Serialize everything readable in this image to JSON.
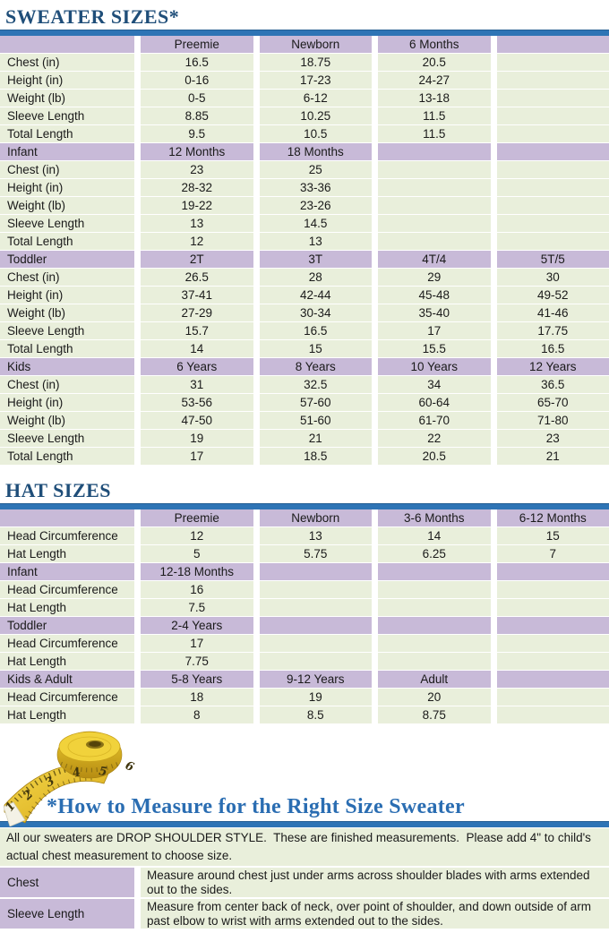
{
  "colors": {
    "title_navy": "#1F4E79",
    "bar_blue": "#2E74B5",
    "header_purple": "#C8BAD8",
    "cell_green": "#E9EFDB",
    "heading_blue": "#2A6DB2",
    "tape_yellow": "#E9C42A"
  },
  "sweater": {
    "title": "SWEATER SIZES*",
    "sections": [
      {
        "header": [
          "",
          "Preemie",
          "Newborn",
          "6 Months",
          ""
        ],
        "rows": [
          [
            "Chest (in)",
            "16.5",
            "18.75",
            "20.5",
            ""
          ],
          [
            "Height (in)",
            "0-16",
            "17-23",
            "24-27",
            ""
          ],
          [
            "Weight (lb)",
            "0-5",
            "6-12",
            "13-18",
            ""
          ],
          [
            "Sleeve Length",
            "8.85",
            "10.25",
            "11.5",
            ""
          ],
          [
            "Total Length",
            "9.5",
            "10.5",
            "11.5",
            ""
          ]
        ]
      },
      {
        "header": [
          "Infant",
          "12 Months",
          "18 Months",
          "",
          ""
        ],
        "rows": [
          [
            "Chest (in)",
            "23",
            "25",
            "",
            ""
          ],
          [
            "Height (in)",
            "28-32",
            "33-36",
            "",
            ""
          ],
          [
            "Weight (lb)",
            "19-22",
            "23-26",
            "",
            ""
          ],
          [
            "Sleeve Length",
            "13",
            "14.5",
            "",
            ""
          ],
          [
            "Total Length",
            "12",
            "13",
            "",
            ""
          ]
        ]
      },
      {
        "header": [
          "Toddler",
          "2T",
          "3T",
          "4T/4",
          "5T/5"
        ],
        "rows": [
          [
            "Chest (in)",
            "26.5",
            "28",
            "29",
            "30"
          ],
          [
            "Height (in)",
            "37-41",
            "42-44",
            "45-48",
            "49-52"
          ],
          [
            "Weight (lb)",
            "27-29",
            "30-34",
            "35-40",
            "41-46"
          ],
          [
            "Sleeve Length",
            "15.7",
            "16.5",
            "17",
            "17.75"
          ],
          [
            "Total Length",
            "14",
            "15",
            "15.5",
            "16.5"
          ]
        ]
      },
      {
        "header": [
          "Kids",
          "6 Years",
          "8 Years",
          "10 Years",
          "12 Years"
        ],
        "rows": [
          [
            "Chest (in)",
            "31",
            "32.5",
            "34",
            "36.5"
          ],
          [
            "Height (in)",
            "53-56",
            "57-60",
            "60-64",
            "65-70"
          ],
          [
            "Weight (lb)",
            "47-50",
            "51-60",
            "61-70",
            "71-80"
          ],
          [
            "Sleeve Length",
            "19",
            "21",
            "22",
            "23"
          ],
          [
            "Total Length",
            "17",
            "18.5",
            "20.5",
            "21"
          ]
        ]
      }
    ]
  },
  "hat": {
    "title": "HAT SIZES",
    "sections": [
      {
        "header": [
          "",
          "Preemie",
          "Newborn",
          "3-6 Months",
          "6-12 Months"
        ],
        "rows": [
          [
            "Head Circumference",
            "12",
            "13",
            "14",
            "15"
          ],
          [
            "Hat Length",
            "5",
            "5.75",
            "6.25",
            "7"
          ]
        ]
      },
      {
        "header": [
          "Infant",
          "12-18 Months",
          "",
          "",
          ""
        ],
        "rows": [
          [
            "Head Circumference",
            "16",
            "",
            "",
            ""
          ],
          [
            "Hat Length",
            "7.5",
            "",
            "",
            ""
          ]
        ]
      },
      {
        "header": [
          "Toddler",
          "2-4 Years",
          "",
          "",
          ""
        ],
        "rows": [
          [
            "Head Circumference",
            "17",
            "",
            "",
            ""
          ],
          [
            "Hat Length",
            "7.75",
            "",
            "",
            ""
          ]
        ]
      },
      {
        "header": [
          "Kids & Adult",
          "5-8 Years",
          "9-12 Years",
          "Adult",
          ""
        ],
        "rows": [
          [
            "Head Circumference",
            "18",
            "19",
            "20",
            ""
          ],
          [
            "Hat Length",
            "8",
            "8.5",
            "8.75",
            ""
          ]
        ]
      }
    ]
  },
  "measure": {
    "heading": "*How to Measure for the Right Size Sweater",
    "intro": "All our sweaters are DROP SHOULDER STYLE.  These are finished measurements.  Please add 4\" to child's actual chest measurement to choose size.",
    "tape_numbers": [
      "1",
      "2",
      "3",
      "4",
      "5",
      "6"
    ],
    "rows": [
      {
        "label": "Chest",
        "text": "Measure around chest just under arms across shoulder blades with arms extended out to the sides."
      },
      {
        "label": "Sleeve Length",
        "text": "Measure from center back of neck, over point of shoulder, and down outside of arm past elbow to wrist with arms extended out to the sides."
      }
    ]
  }
}
